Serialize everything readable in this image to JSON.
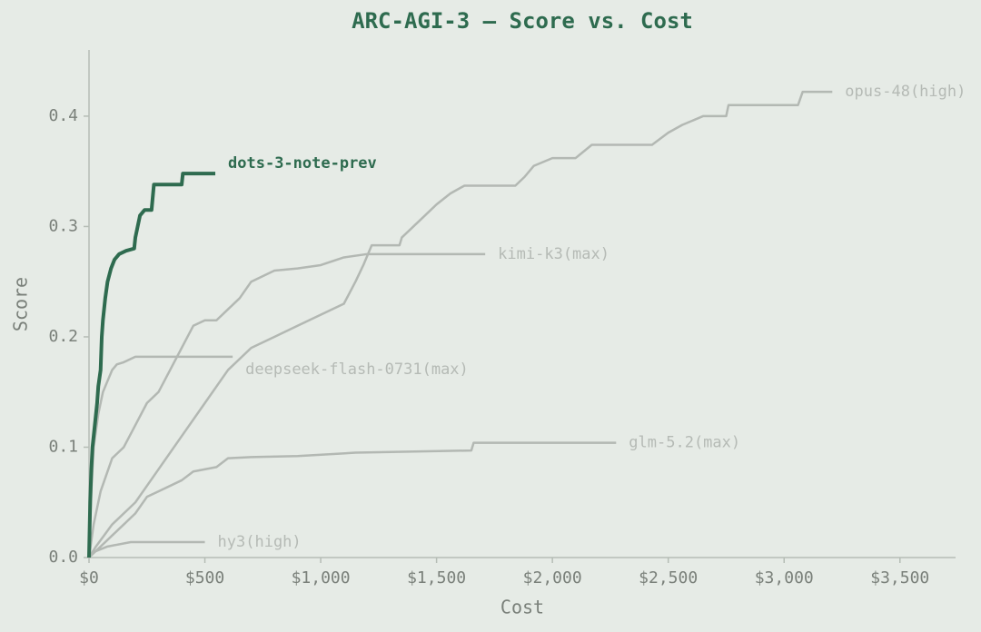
{
  "chart_data": {
    "type": "line",
    "title": "ARC-AGI-3 — Score vs. Cost",
    "x_label": "Cost",
    "y_label": "Score",
    "xlim": [
      0,
      3740
    ],
    "ylim": [
      0,
      0.46
    ],
    "xticks": [
      {
        "value": 0,
        "label": "$0"
      },
      {
        "value": 500,
        "label": "$500"
      },
      {
        "value": 1000,
        "label": "$1,000"
      },
      {
        "value": 1500,
        "label": "$1,500"
      },
      {
        "value": 2000,
        "label": "$2,000"
      },
      {
        "value": 2500,
        "label": "$2,500"
      },
      {
        "value": 3000,
        "label": "$3,000"
      },
      {
        "value": 3500,
        "label": "$3,500"
      }
    ],
    "yticks": [
      {
        "value": 0,
        "label": "0.0"
      },
      0.1,
      0.2,
      0.3,
      0.4
    ],
    "series": [
      {
        "name": "opus-48(high)",
        "color": "#b3b8b3",
        "x": [
          0,
          30,
          100,
          200,
          300,
          400,
          500,
          600,
          700,
          800,
          900,
          1000,
          1100,
          1150,
          1184,
          1220,
          1340,
          1350,
          1400,
          1450,
          1500,
          1560,
          1620,
          1840,
          1880,
          1920,
          2000,
          2100,
          2170,
          2430,
          2500,
          2560,
          2650,
          2750,
          2760,
          3060,
          3080,
          3208
        ],
        "values": [
          0,
          0.01,
          0.03,
          0.05,
          0.08,
          0.11,
          0.14,
          0.17,
          0.19,
          0.2,
          0.21,
          0.22,
          0.23,
          0.25,
          0.265,
          0.283,
          0.283,
          0.29,
          0.3,
          0.31,
          0.32,
          0.33,
          0.337,
          0.337,
          0.345,
          0.355,
          0.362,
          0.362,
          0.374,
          0.374,
          0.385,
          0.392,
          0.4,
          0.4,
          0.41,
          0.41,
          0.422,
          0.422
        ]
      },
      {
        "name": "kimi-k3(max)",
        "color": "#b3b8b3",
        "x": [
          0,
          20,
          50,
          100,
          150,
          200,
          250,
          300,
          350,
          400,
          450,
          500,
          550,
          600,
          650,
          700,
          800,
          900,
          1000,
          1100,
          1200,
          1710
        ],
        "values": [
          0,
          0.03,
          0.06,
          0.09,
          0.1,
          0.12,
          0.14,
          0.15,
          0.17,
          0.19,
          0.21,
          0.215,
          0.215,
          0.225,
          0.235,
          0.25,
          0.26,
          0.262,
          0.265,
          0.272,
          0.275,
          0.275
        ]
      },
      {
        "name": "deepseek-flash-0731(max)",
        "color": "#b3b8b3",
        "x": [
          0,
          10,
          20,
          40,
          60,
          80,
          100,
          120,
          150,
          200,
          620
        ],
        "values": [
          0,
          0.06,
          0.1,
          0.13,
          0.15,
          0.16,
          0.17,
          0.175,
          0.177,
          0.182,
          0.182
        ]
      },
      {
        "name": "glm-5.2(max)",
        "color": "#b3b8b3",
        "x": [
          0,
          50,
          100,
          150,
          200,
          250,
          300,
          400,
          450,
          550,
          600,
          700,
          900,
          1150,
          1650,
          1660,
          2275
        ],
        "values": [
          0,
          0.01,
          0.02,
          0.03,
          0.04,
          0.055,
          0.06,
          0.07,
          0.078,
          0.082,
          0.09,
          0.091,
          0.092,
          0.095,
          0.097,
          0.104,
          0.104
        ]
      },
      {
        "name": "hy3(high)",
        "color": "#b3b8b3",
        "x": [
          0,
          20,
          80,
          180,
          500
        ],
        "values": [
          0,
          0.005,
          0.01,
          0.014,
          0.014
        ]
      },
      {
        "name": "dots-3-note-prev",
        "color": "#2e6b4f",
        "x": [
          0,
          5,
          10,
          15,
          25,
          35,
          40,
          50,
          55,
          60,
          70,
          80,
          95,
          110,
          130,
          160,
          195,
          200,
          210,
          220,
          240,
          270,
          280,
          400,
          405,
          545
        ],
        "values": [
          0,
          0.05,
          0.08,
          0.1,
          0.12,
          0.14,
          0.155,
          0.17,
          0.2,
          0.215,
          0.235,
          0.25,
          0.262,
          0.27,
          0.275,
          0.278,
          0.28,
          0.29,
          0.3,
          0.31,
          0.315,
          0.315,
          0.338,
          0.338,
          0.348,
          0.348
        ]
      }
    ]
  }
}
